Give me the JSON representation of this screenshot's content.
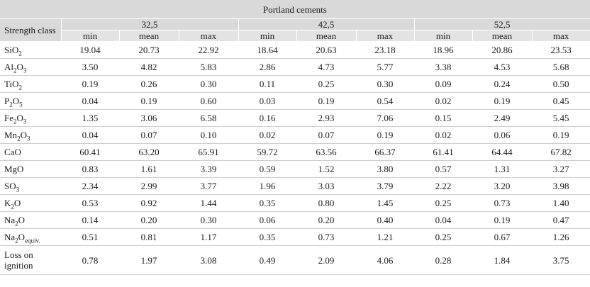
{
  "title": "Portland cements",
  "row_header": "Strength class",
  "classes": [
    "32,5",
    "42,5",
    "52,5"
  ],
  "stats": [
    "min",
    "mean",
    "max"
  ],
  "rows": [
    {
      "label": "SiO",
      "sub": "2",
      "suffix": "",
      "values": [
        "19.04",
        "20.73",
        "22.92",
        "18.64",
        "20.63",
        "23.18",
        "18.96",
        "20.86",
        "23.53"
      ]
    },
    {
      "label": "Al",
      "sub": "2",
      "suffix": "O",
      "sub2": "3",
      "values": [
        "3.50",
        "4.82",
        "5.83",
        "2.86",
        "4.73",
        "5.77",
        "3.38",
        "4.53",
        "5.68"
      ]
    },
    {
      "label": "TiO",
      "sub": "2",
      "suffix": "",
      "values": [
        "0.19",
        "0.26",
        "0.30",
        "0.11",
        "0.25",
        "0.30",
        "0.09",
        "0.24",
        "0.50"
      ]
    },
    {
      "label": "P",
      "sub": "2",
      "suffix": "O",
      "sub2": "5",
      "values": [
        "0.04",
        "0.19",
        "0.60",
        "0.03",
        "0.19",
        "0.54",
        "0.02",
        "0.19",
        "0.45"
      ]
    },
    {
      "label": "Fe",
      "sub": "2",
      "suffix": "O",
      "sub2": "3",
      "values": [
        "1.35",
        "3.06",
        "6.58",
        "0.16",
        "2.93",
        "7.06",
        "0.15",
        "2.49",
        "5.45"
      ]
    },
    {
      "label": "Mn",
      "sub": "2",
      "suffix": "O",
      "sub2": "3",
      "values": [
        "0.04",
        "0.07",
        "0.10",
        "0.02",
        "0.07",
        "0.19",
        "0.02",
        "0.06",
        "0.19"
      ]
    },
    {
      "label": "CaO",
      "sub": "",
      "suffix": "",
      "values": [
        "60.41",
        "63.20",
        "65.91",
        "59.72",
        "63.56",
        "66.37",
        "61.41",
        "64.44",
        "67.82"
      ]
    },
    {
      "label": "MgO",
      "sub": "",
      "suffix": "",
      "values": [
        "0.83",
        "1.61",
        "3.39",
        "0.59",
        "1.52",
        "3.80",
        "0.57",
        "1.31",
        "3.27"
      ]
    },
    {
      "label": "SO",
      "sub": "3",
      "suffix": "",
      "values": [
        "2.34",
        "2.99",
        "3.77",
        "1.96",
        "3.03",
        "3.79",
        "2.22",
        "3.20",
        "3.98"
      ]
    },
    {
      "label": "K",
      "sub": "2",
      "suffix": "O",
      "values": [
        "0.53",
        "0.92",
        "1.44",
        "0.35",
        "0.80",
        "1.45",
        "0.25",
        "0.73",
        "1.40"
      ]
    },
    {
      "label": "Na",
      "sub": "2",
      "suffix": "O",
      "values": [
        "0.14",
        "0.20",
        "0.30",
        "0.06",
        "0.20",
        "0.40",
        "0.04",
        "0.19",
        "0.47"
      ]
    },
    {
      "label": "Na",
      "sub": "2",
      "suffix": "O",
      "sub2": "equiv.",
      "values": [
        "0.51",
        "0.81",
        "1.17",
        "0.35",
        "0.73",
        "1.21",
        "0.25",
        "0.67",
        "1.26"
      ]
    },
    {
      "label": "Loss on ignition",
      "sub": "",
      "suffix": "",
      "values": [
        "0.78",
        "1.97",
        "3.08",
        "0.49",
        "2.09",
        "4.06",
        "0.28",
        "1.84",
        "3.75"
      ]
    }
  ]
}
